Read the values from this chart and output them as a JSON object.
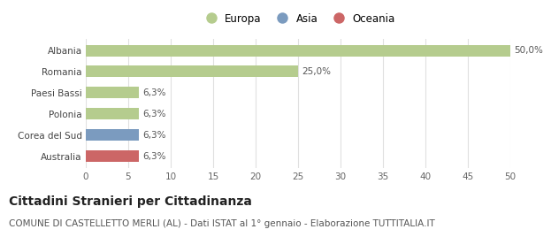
{
  "categories": [
    "Albania",
    "Romania",
    "Paesi Bassi",
    "Polonia",
    "Corea del Sud",
    "Australia"
  ],
  "values": [
    50.0,
    25.0,
    6.3,
    6.3,
    6.3,
    6.3
  ],
  "bar_colors": [
    "#b5cc8e",
    "#b5cc8e",
    "#b5cc8e",
    "#b5cc8e",
    "#7b9bbf",
    "#cc6666"
  ],
  "bar_labels": [
    "50,0%",
    "25,0%",
    "6,3%",
    "6,3%",
    "6,3%",
    "6,3%"
  ],
  "xlim": [
    0,
    50
  ],
  "xticks": [
    0,
    5,
    10,
    15,
    20,
    25,
    30,
    35,
    40,
    45,
    50
  ],
  "legend_entries": [
    {
      "label": "Europa",
      "color": "#b5cc8e"
    },
    {
      "label": "Asia",
      "color": "#7b9bbf"
    },
    {
      "label": "Oceania",
      "color": "#cc6666"
    }
  ],
  "title": "Cittadini Stranieri per Cittadinanza",
  "subtitle": "COMUNE DI CASTELLETTO MERLI (AL) - Dati ISTAT al 1° gennaio - Elaborazione TUTTITALIA.IT",
  "background_color": "#ffffff",
  "grid_color": "#e0e0e0",
  "title_fontsize": 10,
  "subtitle_fontsize": 7.5,
  "label_fontsize": 7.5,
  "tick_fontsize": 7.5,
  "bar_height": 0.55
}
